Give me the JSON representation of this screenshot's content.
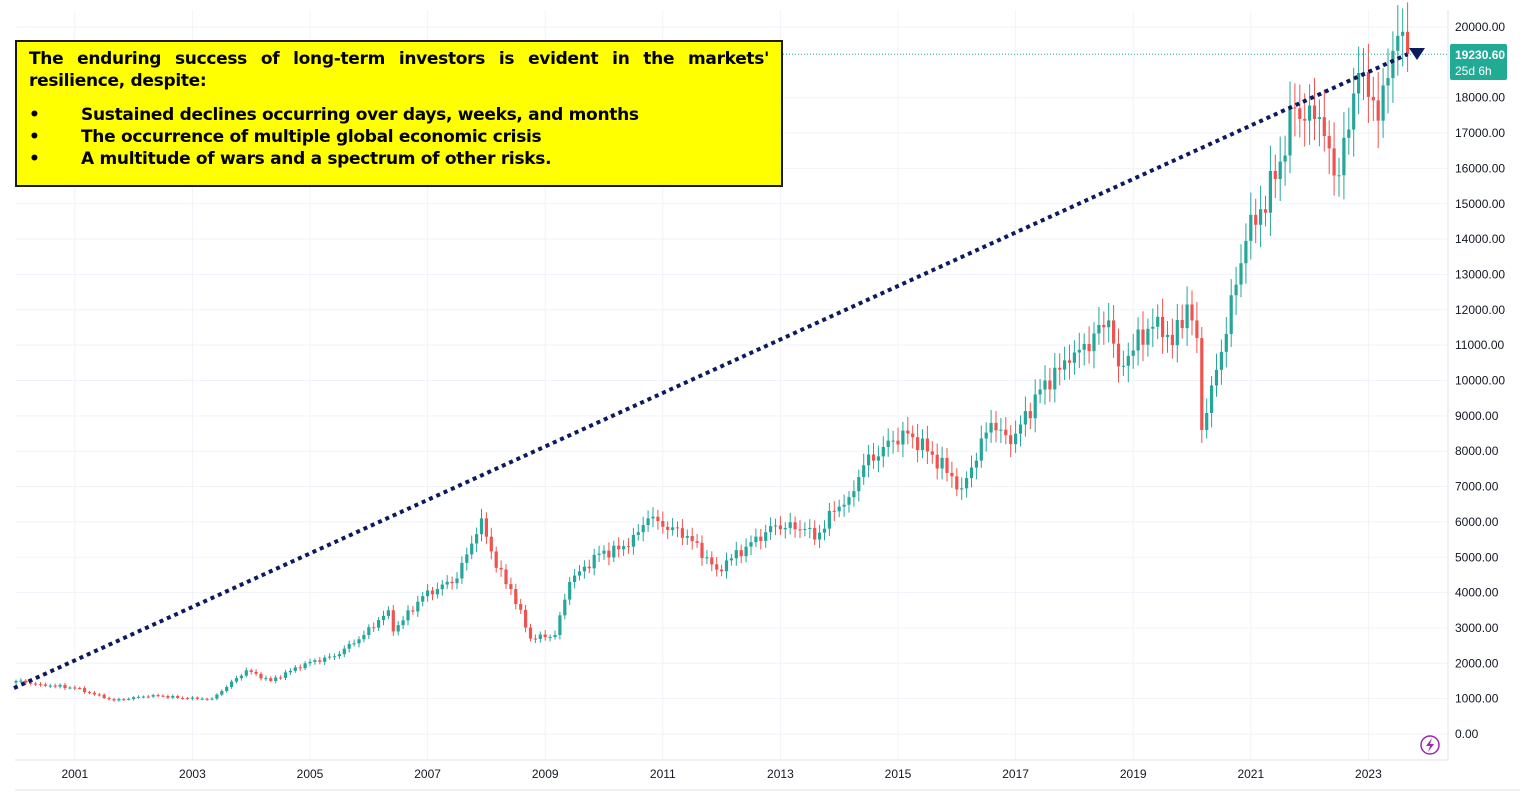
{
  "annotation": {
    "intro": "The enduring success of long-term investors is evident in the markets' resilience, despite:",
    "bullets": [
      "Sustained declines occurring over days, weeks, and months",
      "The occurrence of multiple global economic crisis",
      "A multitude of wars and a spectrum of other risks."
    ]
  },
  "price_badge": {
    "price": "19230.60",
    "countdown": "25d 6h",
    "color": "#22ab94"
  },
  "icons": {
    "flash": "lightning-bolt-icon",
    "flash_color": "#9c27b0"
  },
  "colors": {
    "up": "#26a69a",
    "down": "#ef5350",
    "trend": "#0d1b5e",
    "grid": "#f0f3fa"
  },
  "chart_data": {
    "type": "candlestick",
    "title": "",
    "xlabel": "",
    "ylabel": "",
    "x_ticks": [
      "2001",
      "2003",
      "2005",
      "2007",
      "2009",
      "2011",
      "2013",
      "2015",
      "2017",
      "2019",
      "2021",
      "2023"
    ],
    "y_ticks": [
      "0.00",
      "1000.00",
      "2000.00",
      "3000.00",
      "4000.00",
      "5000.00",
      "6000.00",
      "7000.00",
      "8000.00",
      "9000.00",
      "10000.00",
      "11000.00",
      "12000.00",
      "13000.00",
      "14000.00",
      "15000.00",
      "16000.00",
      "17000.00",
      "18000.00",
      "20000.00"
    ],
    "ylim": [
      0,
      20000
    ],
    "xlim": [
      "2000-01",
      "2023-12"
    ],
    "grid": true,
    "interval": "monthly",
    "trend_line": {
      "style": "dotted",
      "start": {
        "date": "2000-01",
        "value": 1300
      },
      "end": {
        "date": "2023-09",
        "value": 19230.6
      }
    },
    "last_price": 19230.6,
    "monthly_close_anchors": [
      [
        "2000-01",
        1500
      ],
      [
        "2000-06",
        1400
      ],
      [
        "2001-01",
        1300
      ],
      [
        "2001-09",
        950
      ],
      [
        "2002-05",
        1100
      ],
      [
        "2002-12",
        1000
      ],
      [
        "2003-05",
        1000
      ],
      [
        "2003-12",
        1800
      ],
      [
        "2004-05",
        1500
      ],
      [
        "2004-12",
        2000
      ],
      [
        "2005-06",
        2200
      ],
      [
        "2005-12",
        2800
      ],
      [
        "2006-05",
        3500
      ],
      [
        "2006-06",
        2900
      ],
      [
        "2006-12",
        3900
      ],
      [
        "2007-07",
        4400
      ],
      [
        "2007-12",
        6100
      ],
      [
        "2008-03",
        4700
      ],
      [
        "2008-06",
        4100
      ],
      [
        "2008-10",
        2700
      ],
      [
        "2009-03",
        2800
      ],
      [
        "2009-06",
        4300
      ],
      [
        "2009-12",
        5100
      ],
      [
        "2010-06",
        5300
      ],
      [
        "2010-10",
        6100
      ],
      [
        "2011-06",
        5600
      ],
      [
        "2011-12",
        4650
      ],
      [
        "2012-06",
        5300
      ],
      [
        "2012-12",
        5900
      ],
      [
        "2013-06",
        5800
      ],
      [
        "2013-08",
        5500
      ],
      [
        "2013-12",
        6300
      ],
      [
        "2014-03",
        6700
      ],
      [
        "2014-06",
        7600
      ],
      [
        "2014-12",
        8300
      ],
      [
        "2015-03",
        8500
      ],
      [
        "2015-08",
        7900
      ],
      [
        "2016-02",
        6950
      ],
      [
        "2016-08",
        8800
      ],
      [
        "2016-12",
        8200
      ],
      [
        "2017-07",
        10000
      ],
      [
        "2017-12",
        10500
      ],
      [
        "2018-08",
        11700
      ],
      [
        "2018-10",
        10400
      ],
      [
        "2019-06",
        11800
      ],
      [
        "2019-09",
        11000
      ],
      [
        "2019-12",
        12150
      ],
      [
        "2020-02",
        11200
      ],
      [
        "2020-03",
        8600
      ],
      [
        "2020-06",
        10300
      ],
      [
        "2020-12",
        13950
      ],
      [
        "2021-06",
        15700
      ],
      [
        "2021-10",
        17700
      ],
      [
        "2021-12",
        17350
      ],
      [
        "2022-03",
        17450
      ],
      [
        "2022-06",
        15800
      ],
      [
        "2022-09",
        17100
      ],
      [
        "2022-11",
        18700
      ],
      [
        "2023-03",
        17350
      ],
      [
        "2023-07",
        19750
      ],
      [
        "2023-09",
        19230.6
      ]
    ]
  }
}
